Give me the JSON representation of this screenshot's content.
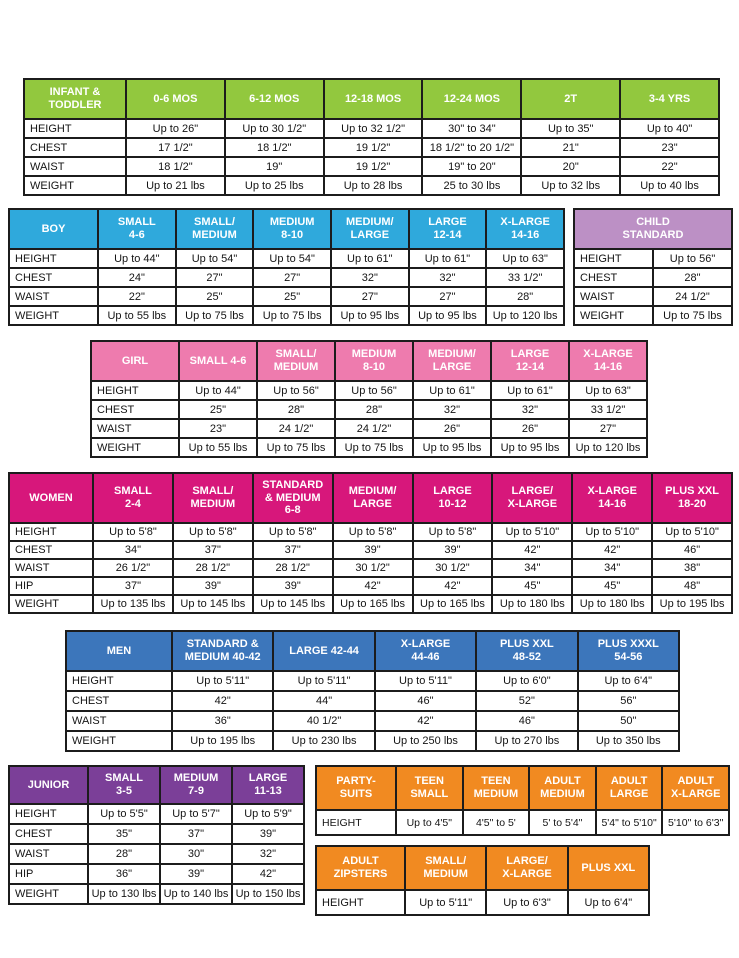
{
  "colors": {
    "border": "#1c1c1c",
    "header_text": "#ffffff",
    "infant_green": "#92c83e",
    "boy_cyan": "#2fa9dc",
    "child_lavender": "#bc90c5",
    "girl_pink": "#ee7bae",
    "women_magenta": "#d7177b",
    "men_blue": "#3c76bb",
    "junior_purple": "#7b3f98",
    "suits_orange": "#f18a21"
  },
  "tables": [
    {
      "id": "infant-toddler",
      "title": "INFANT &\nTODDLER",
      "header_color": "#92c83e",
      "columns": [
        "0-6 MOS",
        "6-12 MOS",
        "12-18 MOS",
        "12-24 MOS",
        "2T",
        "3-4 YRS"
      ],
      "rows": [
        {
          "label": "HEIGHT",
          "values": [
            "Up to 26\"",
            "Up to 30 1/2\"",
            "Up to 32 1/2\"",
            "30\" to 34\"",
            "Up to 35\"",
            "Up to 40\""
          ]
        },
        {
          "label": "CHEST",
          "values": [
            "17 1/2\"",
            "18 1/2\"",
            "19 1/2\"",
            "18 1/2\" to 20 1/2\"",
            "21\"",
            "23\""
          ]
        },
        {
          "label": "WAIST",
          "values": [
            "18 1/2\"",
            "19\"",
            "19 1/2\"",
            "19\" to 20\"",
            "20\"",
            "22\""
          ]
        },
        {
          "label": "WEIGHT",
          "values": [
            "Up to 21 lbs",
            "Up to 25 lbs",
            "Up to 28 lbs",
            "25 to 30 lbs",
            "Up to 32 lbs",
            "Up to 40 lbs"
          ]
        }
      ]
    },
    {
      "id": "boy",
      "title": "BOY",
      "header_color": "#2fa9dc",
      "columns": [
        "SMALL\n4-6",
        "SMALL/\nMEDIUM",
        "MEDIUM\n8-10",
        "MEDIUM/\nLARGE",
        "LARGE\n12-14",
        "X-LARGE\n14-16"
      ],
      "rows": [
        {
          "label": "HEIGHT",
          "values": [
            "Up to 44\"",
            "Up to 54\"",
            "Up to 54\"",
            "Up to 61\"",
            "Up to 61\"",
            "Up to 63\""
          ]
        },
        {
          "label": "CHEST",
          "values": [
            "24\"",
            "27\"",
            "27\"",
            "32\"",
            "32\"",
            "33 1/2\""
          ]
        },
        {
          "label": "WAIST",
          "values": [
            "22\"",
            "25\"",
            "25\"",
            "27\"",
            "27\"",
            "28\""
          ]
        },
        {
          "label": "WEIGHT",
          "values": [
            "Up to 55 lbs",
            "Up to 75 lbs",
            "Up to 75 lbs",
            "Up to 95 lbs",
            "Up to 95 lbs",
            "Up to 120 lbs"
          ]
        }
      ]
    },
    {
      "id": "child-standard",
      "title": "CHILD\nSTANDARD",
      "header_color": "#bc90c5",
      "columns": [],
      "rows": [
        {
          "label": "HEIGHT",
          "values": [
            "Up to 56\""
          ]
        },
        {
          "label": "CHEST",
          "values": [
            "28\""
          ]
        },
        {
          "label": "WAIST",
          "values": [
            "24 1/2\""
          ]
        },
        {
          "label": "WEIGHT",
          "values": [
            "Up to 75 lbs"
          ]
        }
      ]
    },
    {
      "id": "girl",
      "title": "GIRL",
      "header_color": "#ee7bae",
      "columns": [
        "SMALL 4-6",
        "SMALL/\nMEDIUM",
        "MEDIUM\n8-10",
        "MEDIUM/\nLARGE",
        "LARGE\n12-14",
        "X-LARGE\n14-16"
      ],
      "rows": [
        {
          "label": "HEIGHT",
          "values": [
            "Up to 44\"",
            "Up to 56\"",
            "Up to 56\"",
            "Up to 61\"",
            "Up to 61\"",
            "Up to 63\""
          ]
        },
        {
          "label": "CHEST",
          "values": [
            "25\"",
            "28\"",
            "28\"",
            "32\"",
            "32\"",
            "33 1/2\""
          ]
        },
        {
          "label": "WAIST",
          "values": [
            "23\"",
            "24 1/2\"",
            "24 1/2\"",
            "26\"",
            "26\"",
            "27\""
          ]
        },
        {
          "label": "WEIGHT",
          "values": [
            "Up to 55 lbs",
            "Up to 75 lbs",
            "Up to 75 lbs",
            "Up to 95 lbs",
            "Up to 95 lbs",
            "Up to 120 lbs"
          ]
        }
      ]
    },
    {
      "id": "women",
      "title": "WOMEN",
      "header_color": "#d7177b",
      "columns": [
        "SMALL\n2-4",
        "SMALL/\nMEDIUM",
        "STANDARD\n& MEDIUM\n6-8",
        "MEDIUM/\nLARGE",
        "LARGE\n10-12",
        "LARGE/\nX-LARGE",
        "X-LARGE\n14-16",
        "PLUS XXL\n18-20"
      ],
      "rows": [
        {
          "label": "HEIGHT",
          "values": [
            "Up to 5'8\"",
            "Up to 5'8\"",
            "Up to 5'8\"",
            "Up to 5'8\"",
            "Up to 5'8\"",
            "Up to 5'10\"",
            "Up to 5'10\"",
            "Up to 5'10\""
          ]
        },
        {
          "label": "CHEST",
          "values": [
            "34\"",
            "37\"",
            "37\"",
            "39\"",
            "39\"",
            "42\"",
            "42\"",
            "46\""
          ]
        },
        {
          "label": "WAIST",
          "values": [
            "26 1/2\"",
            "28 1/2\"",
            "28 1/2\"",
            "30 1/2\"",
            "30 1/2\"",
            "34\"",
            "34\"",
            "38\""
          ]
        },
        {
          "label": "HIP",
          "values": [
            "37\"",
            "39\"",
            "39\"",
            "42\"",
            "42\"",
            "45\"",
            "45\"",
            "48\""
          ]
        },
        {
          "label": "WEIGHT",
          "values": [
            "Up to 135 lbs",
            "Up to 145 lbs",
            "Up to 145 lbs",
            "Up to 165 lbs",
            "Up to 165 lbs",
            "Up to 180 lbs",
            "Up to 180 lbs",
            "Up to 195 lbs"
          ]
        }
      ]
    },
    {
      "id": "men",
      "title": "MEN",
      "header_color": "#3c76bb",
      "columns": [
        "STANDARD &\nMEDIUM 40-42",
        "LARGE 42-44",
        "X-LARGE\n44-46",
        "PLUS XXL\n48-52",
        "PLUS XXXL\n54-56"
      ],
      "rows": [
        {
          "label": "HEIGHT",
          "values": [
            "Up to 5'11\"",
            "Up to 5'11\"",
            "Up to 5'11\"",
            "Up to 6'0\"",
            "Up to 6'4\""
          ]
        },
        {
          "label": "CHEST",
          "values": [
            "42\"",
            "44\"",
            "46\"",
            "52\"",
            "56\""
          ]
        },
        {
          "label": "WAIST",
          "values": [
            "36\"",
            "40 1/2\"",
            "42\"",
            "46\"",
            "50\""
          ]
        },
        {
          "label": "WEIGHT",
          "values": [
            "Up to 195 lbs",
            "Up to 230 lbs",
            "Up to 250 lbs",
            "Up to 270 lbs",
            "Up to 350 lbs"
          ]
        }
      ]
    },
    {
      "id": "junior",
      "title": "JUNIOR",
      "header_color": "#7b3f98",
      "columns": [
        "SMALL\n3-5",
        "MEDIUM\n7-9",
        "LARGE\n11-13"
      ],
      "rows": [
        {
          "label": "HEIGHT",
          "values": [
            "Up to 5'5\"",
            "Up to 5'7\"",
            "Up to 5'9\""
          ]
        },
        {
          "label": "CHEST",
          "values": [
            "35\"",
            "37\"",
            "39\""
          ]
        },
        {
          "label": "WAIST",
          "values": [
            "28\"",
            "30\"",
            "32\""
          ]
        },
        {
          "label": "HIP",
          "values": [
            "36\"",
            "39\"",
            "42\""
          ]
        },
        {
          "label": "WEIGHT",
          "values": [
            "Up to 130 lbs",
            "Up to 140 lbs",
            "Up to 150 lbs"
          ]
        }
      ]
    },
    {
      "id": "party-suits",
      "title": "PARTY-\nSUITS",
      "header_color": "#f18a21",
      "columns": [
        "TEEN\nSMALL",
        "TEEN\nMEDIUM",
        "ADULT\nMEDIUM",
        "ADULT\nLARGE",
        "ADULT\nX-LARGE"
      ],
      "rows": [
        {
          "label": "HEIGHT",
          "values": [
            "Up to 4'5\"",
            "4'5\" to 5'",
            "5' to 5'4\"",
            "5'4\" to 5'10\"",
            "5'10\" to 6'3\""
          ]
        }
      ]
    },
    {
      "id": "adult-zipsters",
      "title": "ADULT\nZIPSTERS",
      "header_color": "#f18a21",
      "columns": [
        "SMALL/\nMEDIUM",
        "LARGE/\nX-LARGE",
        "PLUS XXL"
      ],
      "rows": [
        {
          "label": "HEIGHT",
          "values": [
            "Up to 5'11\"",
            "Up to 6'3\"",
            "Up to 6'4\""
          ]
        }
      ]
    }
  ]
}
